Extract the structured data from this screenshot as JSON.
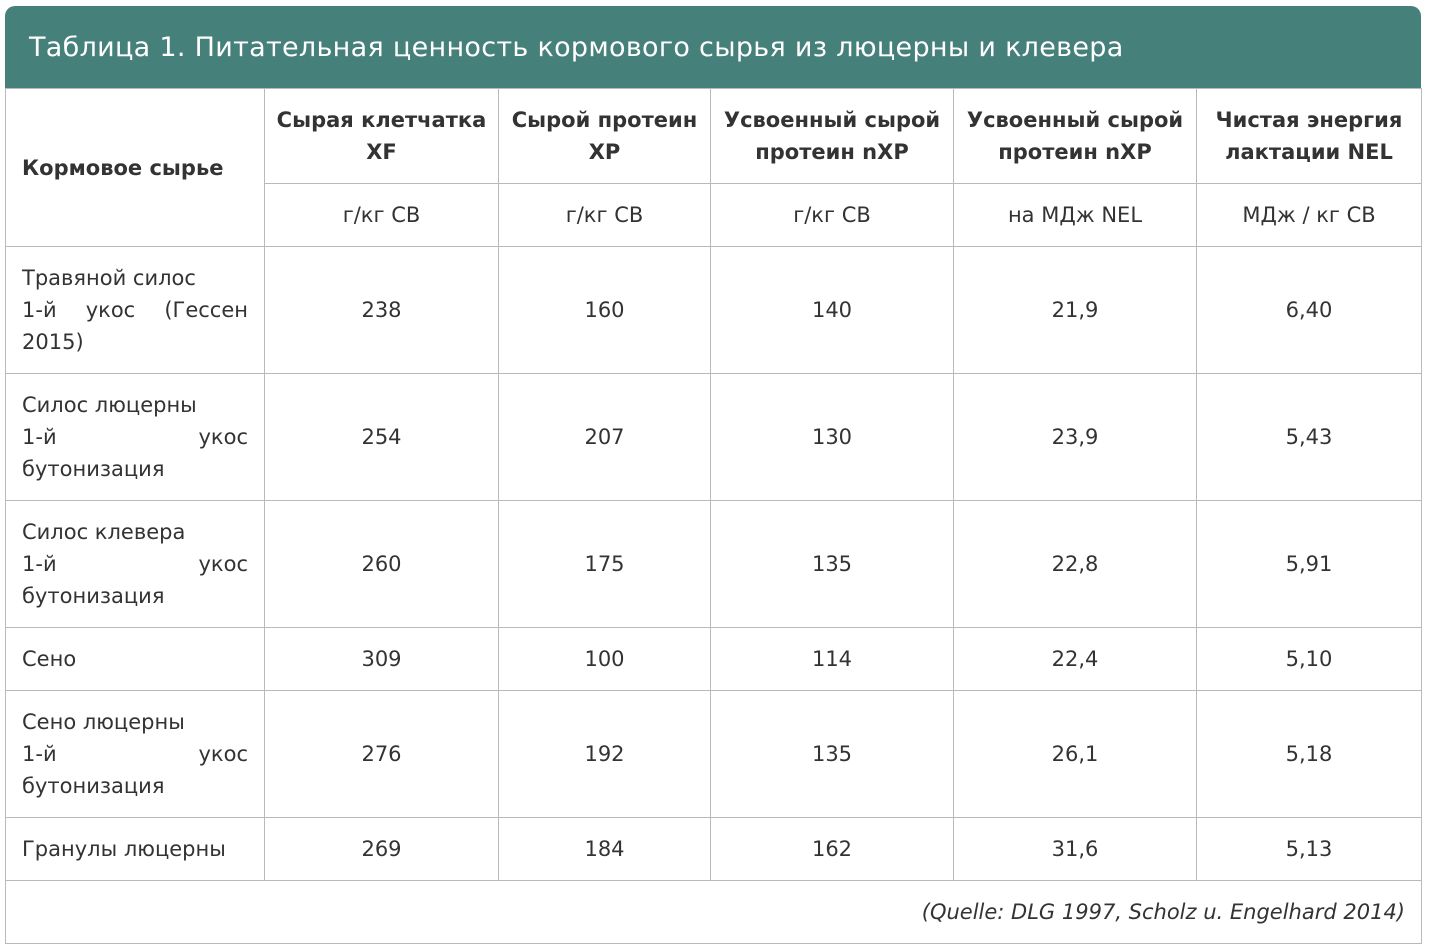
{
  "title": "Таблица 1. Питательная ценность кормового сырья из люцерны и клевера",
  "header": {
    "first_col": "Кормовое сырье",
    "columns": [
      {
        "label_line1": "Сырая клетчатка",
        "label_line2": "XF",
        "unit": "г/кг СВ"
      },
      {
        "label_line1": "Сырой протеин",
        "label_line2": "XP",
        "unit": "г/кг СВ"
      },
      {
        "label_line1": "Усвоенный сырой",
        "label_line2": "протеин nXP",
        "unit": "г/кг СВ"
      },
      {
        "label_line1": "Усвоенный сырой",
        "label_line2": "протеин nXP",
        "unit": "на МДж NEL"
      },
      {
        "label_line1": "Чистая энергия",
        "label_line2": "лактации NEL",
        "unit": "МДж / кг СВ"
      }
    ]
  },
  "rows": [
    {
      "name_lines": [
        "Травяной силос",
        "1-й укос (Гессен",
        "2015)"
      ],
      "values": [
        "238",
        "160",
        "140",
        "21,9",
        "6,40"
      ]
    },
    {
      "name_lines": [
        "Силос люцерны",
        "1-й укос",
        "бутонизация"
      ],
      "values": [
        "254",
        "207",
        "130",
        "23,9",
        "5,43"
      ]
    },
    {
      "name_lines": [
        "Силос клевера",
        "1-й укос",
        "бутонизация"
      ],
      "values": [
        "260",
        "175",
        "135",
        "22,8",
        "5,91"
      ]
    },
    {
      "name_lines": [
        "Сено"
      ],
      "values": [
        "309",
        "100",
        "114",
        "22,4",
        "5,10"
      ]
    },
    {
      "name_lines": [
        "Сено люцерны",
        "1-й укос",
        "бутонизация"
      ],
      "values": [
        "276",
        "192",
        "135",
        "26,1",
        "5,18"
      ]
    },
    {
      "name_lines": [
        "Гранулы люцерны"
      ],
      "values": [
        "269",
        "184",
        "162",
        "31,6",
        "5,13"
      ]
    }
  ],
  "source": "(Quelle: DLG 1997, Scholz u. Engelhard 2014)"
}
